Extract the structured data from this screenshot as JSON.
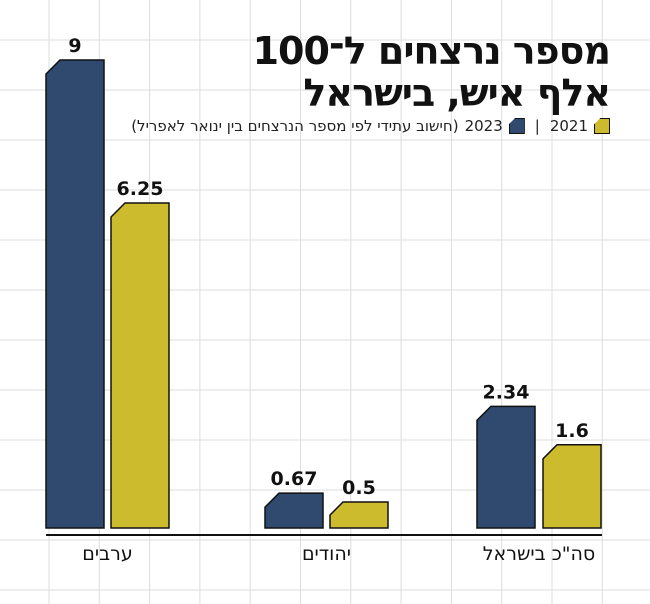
{
  "chart_data": {
    "type": "bar",
    "title": "מספר נרצחים ל־100 אלף איש, בישראל",
    "title_lines": [
      "מספר נרצחים ל־100",
      "אלף איש, בישראל"
    ],
    "legend": [
      {
        "label": "2021",
        "color": "#cdbb2e"
      },
      {
        "label": "2023",
        "color": "#2f4a6e"
      }
    ],
    "legend_note": "(חישוב עתידי לפי מספר הנרצחים בין ינואר לאפריל)",
    "categories": [
      "ערבים",
      "יהודים",
      "סה\"כ בישראל"
    ],
    "series": [
      {
        "name": "2023",
        "color": "#2f4a6e",
        "values": [
          9,
          0.67,
          2.34
        ],
        "labels": [
          "9",
          "0.67",
          "2.34"
        ]
      },
      {
        "name": "2021",
        "color": "#cdbb2e",
        "values": [
          6.25,
          0.5,
          1.6
        ],
        "labels": [
          "6.25",
          "0.5",
          "1.6"
        ]
      }
    ],
    "ylim": [
      0,
      9
    ],
    "grid": true,
    "legend_placement": "top-right"
  }
}
